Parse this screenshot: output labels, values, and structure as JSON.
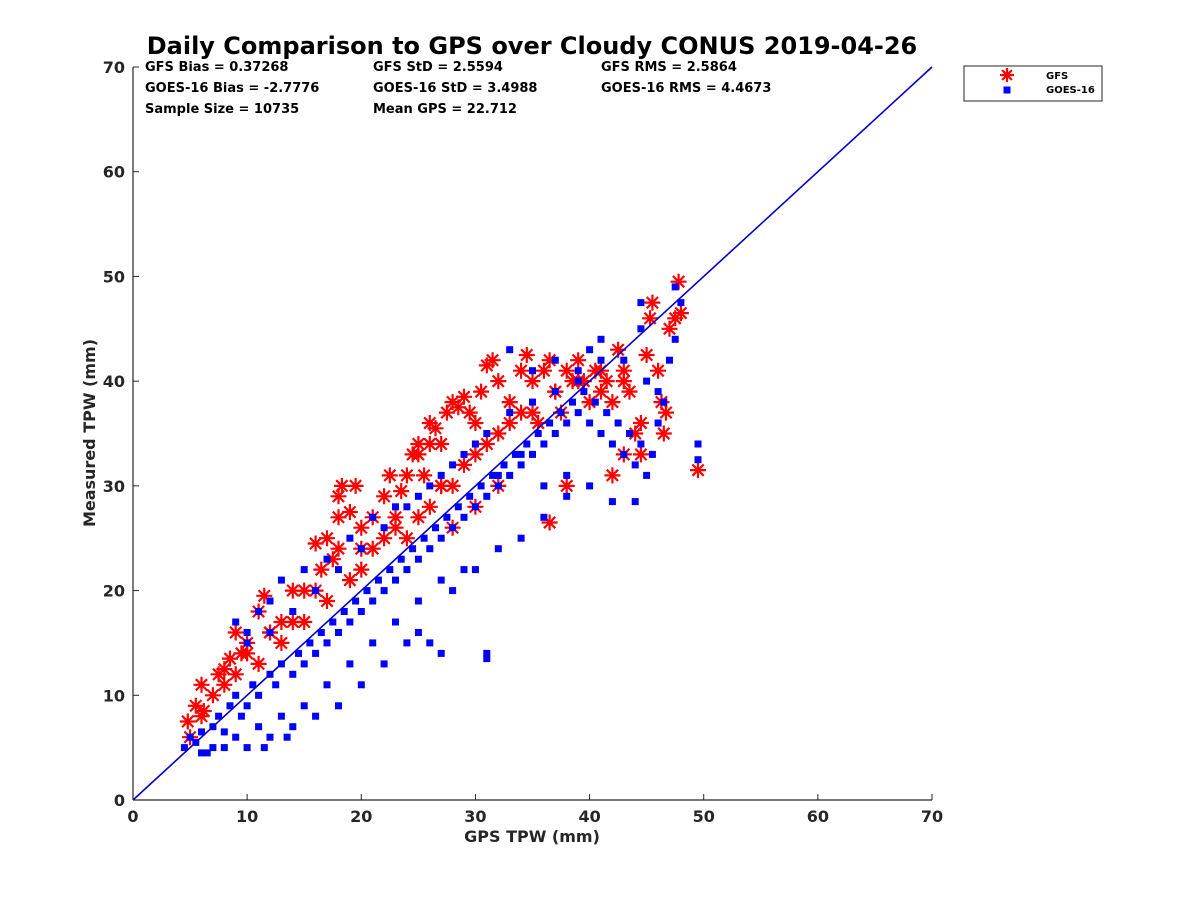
{
  "chart_data": {
    "type": "scatter",
    "title": "Daily Comparison to GPS over Cloudy CONUS 2019-04-26",
    "xlabel": "GPS TPW (mm)",
    "ylabel": "Measured TPW (mm)",
    "xlim": [
      0,
      70
    ],
    "ylim": [
      0,
      70
    ],
    "xticks": [
      "0",
      "10",
      "20",
      "30",
      "40",
      "50",
      "60",
      "70"
    ],
    "yticks": [
      "0",
      "10",
      "20",
      "30",
      "40",
      "50",
      "60",
      "70"
    ],
    "grid": false,
    "legend_position": "top-right outside",
    "stats": [
      [
        "GFS Bias = 0.37268",
        "GFS StD = 2.5594",
        "GFS RMS = 2.5864"
      ],
      [
        "GOES-16 Bias = -2.7776",
        "GOES-16 StD = 3.4988",
        "GOES-16 RMS = 4.4673"
      ],
      [
        "Sample Size = 10735",
        "Mean GPS = 22.712"
      ]
    ],
    "reference_line": {
      "name": "1:1 line",
      "x": [
        0,
        70
      ],
      "y": [
        0,
        70
      ],
      "color": "#0000cc"
    },
    "series": [
      {
        "name": "GFS",
        "marker": "asterisk",
        "color": "#ff0000",
        "bias": 0.37268,
        "std": 2.5594,
        "rms": 2.5864,
        "points": [
          [
            4.8,
            7.5
          ],
          [
            5.5,
            9
          ],
          [
            6,
            11
          ],
          [
            6.2,
            8.5
          ],
          [
            7,
            10
          ],
          [
            7.5,
            12
          ],
          [
            8,
            12.5
          ],
          [
            8.5,
            13.5
          ],
          [
            9,
            16
          ],
          [
            9.5,
            14
          ],
          [
            10,
            15
          ],
          [
            11,
            18
          ],
          [
            11.5,
            19.5
          ],
          [
            12,
            16
          ],
          [
            13,
            17
          ],
          [
            14,
            17
          ],
          [
            15,
            20
          ],
          [
            16,
            24.5
          ],
          [
            16.5,
            22
          ],
          [
            17,
            25
          ],
          [
            17.5,
            23
          ],
          [
            18,
            27
          ],
          [
            18,
            29
          ],
          [
            18.3,
            30
          ],
          [
            19,
            27.5
          ],
          [
            19.5,
            30
          ],
          [
            20,
            26
          ],
          [
            21,
            27
          ],
          [
            22,
            29
          ],
          [
            22.5,
            31
          ],
          [
            23,
            27
          ],
          [
            23.5,
            29.5
          ],
          [
            24,
            31
          ],
          [
            24.5,
            33
          ],
          [
            25,
            34
          ],
          [
            25.5,
            31
          ],
          [
            26,
            36
          ],
          [
            26.5,
            35.5
          ],
          [
            27,
            34
          ],
          [
            27.5,
            37
          ],
          [
            28,
            38
          ],
          [
            28.5,
            37.5
          ],
          [
            29,
            38.5
          ],
          [
            29.5,
            37
          ],
          [
            30,
            36
          ],
          [
            30.5,
            39
          ],
          [
            31,
            41.5
          ],
          [
            31.5,
            42
          ],
          [
            32,
            40
          ],
          [
            33,
            38
          ],
          [
            34,
            41
          ],
          [
            34.5,
            42.5
          ],
          [
            35,
            40
          ],
          [
            35.5,
            36
          ],
          [
            36,
            41
          ],
          [
            36.5,
            42
          ],
          [
            37,
            39
          ],
          [
            37.5,
            37
          ],
          [
            38,
            41
          ],
          [
            38.5,
            40
          ],
          [
            39,
            42
          ],
          [
            39.5,
            40
          ],
          [
            40,
            38
          ],
          [
            40.5,
            41
          ],
          [
            41,
            39
          ],
          [
            41.5,
            40
          ],
          [
            42,
            38
          ],
          [
            42.5,
            43
          ],
          [
            43,
            41
          ],
          [
            43.5,
            39
          ],
          [
            44,
            35
          ],
          [
            44.5,
            36
          ],
          [
            45,
            42.5
          ],
          [
            45.3,
            46
          ],
          [
            45.5,
            47.5
          ],
          [
            46,
            41
          ],
          [
            46.3,
            38
          ],
          [
            46.5,
            35
          ],
          [
            46.7,
            37
          ],
          [
            47,
            45
          ],
          [
            47.5,
            46
          ],
          [
            47.8,
            49.5
          ],
          [
            48,
            46.5
          ],
          [
            49.5,
            31.5
          ],
          [
            28,
            26
          ],
          [
            30,
            28
          ],
          [
            32,
            30
          ],
          [
            24,
            25
          ],
          [
            26,
            28
          ],
          [
            20,
            22
          ],
          [
            18,
            24
          ],
          [
            14,
            20
          ],
          [
            12,
            16
          ],
          [
            10,
            14
          ],
          [
            8,
            11
          ],
          [
            6,
            8
          ],
          [
            5,
            6
          ],
          [
            9,
            12
          ],
          [
            11,
            13
          ],
          [
            13,
            15
          ],
          [
            15,
            17
          ],
          [
            17,
            19
          ],
          [
            19,
            21
          ],
          [
            21,
            24
          ],
          [
            23,
            26
          ],
          [
            25,
            27
          ],
          [
            27,
            30
          ],
          [
            29,
            32
          ],
          [
            31,
            34
          ],
          [
            33,
            36
          ],
          [
            35,
            37
          ],
          [
            37,
            39
          ],
          [
            39,
            40
          ],
          [
            41,
            41
          ],
          [
            43,
            40
          ],
          [
            36.5,
            26.5
          ],
          [
            38,
            30
          ],
          [
            42,
            31
          ],
          [
            43,
            33
          ],
          [
            44.5,
            33
          ],
          [
            25,
            33
          ],
          [
            26,
            34
          ],
          [
            27,
            30
          ],
          [
            22,
            25
          ],
          [
            30,
            33
          ],
          [
            32,
            35
          ],
          [
            34,
            37
          ],
          [
            28,
            30
          ],
          [
            20,
            24
          ],
          [
            16,
            20
          ]
        ]
      },
      {
        "name": "GOES-16",
        "marker": "square",
        "color": "#0000ff",
        "bias": -2.7776,
        "std": 3.4988,
        "rms": 4.4673,
        "points": [
          [
            4.5,
            5
          ],
          [
            5,
            6
          ],
          [
            5.5,
            5.5
          ],
          [
            6,
            6.5
          ],
          [
            6.5,
            4.5
          ],
          [
            7,
            7
          ],
          [
            7.5,
            8
          ],
          [
            8,
            6.5
          ],
          [
            8.5,
            9
          ],
          [
            9,
            10
          ],
          [
            9.5,
            8
          ],
          [
            10,
            9
          ],
          [
            10.5,
            11
          ],
          [
            11,
            10
          ],
          [
            11.5,
            5
          ],
          [
            12,
            12
          ],
          [
            12.5,
            11
          ],
          [
            13,
            13
          ],
          [
            13.5,
            6
          ],
          [
            14,
            12
          ],
          [
            14.5,
            14
          ],
          [
            15,
            13
          ],
          [
            15.5,
            15
          ],
          [
            16,
            14
          ],
          [
            16.5,
            16
          ],
          [
            17,
            15
          ],
          [
            17.5,
            17
          ],
          [
            18,
            16
          ],
          [
            18.5,
            18
          ],
          [
            19,
            17
          ],
          [
            19.5,
            19
          ],
          [
            20,
            18
          ],
          [
            20.5,
            20
          ],
          [
            21,
            19
          ],
          [
            21.5,
            21
          ],
          [
            22,
            20
          ],
          [
            22.5,
            22
          ],
          [
            23,
            21
          ],
          [
            23.5,
            23
          ],
          [
            24,
            22
          ],
          [
            24.5,
            24
          ],
          [
            25,
            23
          ],
          [
            25.5,
            25
          ],
          [
            26,
            24
          ],
          [
            26.5,
            26
          ],
          [
            27,
            25
          ],
          [
            27.5,
            27
          ],
          [
            28,
            26
          ],
          [
            28.5,
            28
          ],
          [
            29,
            27
          ],
          [
            29.5,
            29
          ],
          [
            30,
            28
          ],
          [
            30.5,
            30
          ],
          [
            31,
            29
          ],
          [
            31.5,
            31
          ],
          [
            32,
            30
          ],
          [
            32.5,
            32
          ],
          [
            33,
            31
          ],
          [
            33.5,
            33
          ],
          [
            34,
            32
          ],
          [
            34.5,
            34
          ],
          [
            35,
            33
          ],
          [
            35.5,
            35
          ],
          [
            36,
            34
          ],
          [
            36.5,
            36
          ],
          [
            37,
            35
          ],
          [
            37.5,
            37
          ],
          [
            38,
            36
          ],
          [
            38.5,
            38
          ],
          [
            39,
            37
          ],
          [
            39.5,
            39
          ],
          [
            40,
            36
          ],
          [
            40.5,
            38
          ],
          [
            41,
            35
          ],
          [
            41.5,
            37
          ],
          [
            42,
            34
          ],
          [
            42.5,
            36
          ],
          [
            43,
            33
          ],
          [
            43.5,
            35
          ],
          [
            44,
            32
          ],
          [
            44.5,
            34
          ],
          [
            45,
            31
          ],
          [
            45.5,
            33
          ],
          [
            46,
            36
          ],
          [
            46.5,
            38
          ],
          [
            47,
            42
          ],
          [
            47.5,
            44
          ],
          [
            48,
            47.5
          ],
          [
            47.5,
            49
          ],
          [
            44.5,
            47.5
          ],
          [
            44.5,
            45
          ],
          [
            49.5,
            34
          ],
          [
            49.5,
            32.5
          ],
          [
            31,
            13.5
          ],
          [
            31,
            14
          ],
          [
            26,
            15
          ],
          [
            27,
            14
          ],
          [
            25,
            16
          ],
          [
            20,
            11
          ],
          [
            18,
            9
          ],
          [
            16,
            8
          ],
          [
            14,
            7
          ],
          [
            12,
            6
          ],
          [
            10,
            5
          ],
          [
            8,
            5
          ],
          [
            6,
            4.5
          ],
          [
            22,
            13
          ],
          [
            24,
            15
          ],
          [
            28,
            20
          ],
          [
            30,
            22
          ],
          [
            32,
            24
          ],
          [
            34,
            25
          ],
          [
            36,
            27
          ],
          [
            38,
            29
          ],
          [
            40,
            30
          ],
          [
            29,
            22
          ],
          [
            27,
            21
          ],
          [
            25,
            19
          ],
          [
            23,
            17
          ],
          [
            21,
            15
          ],
          [
            19,
            13
          ],
          [
            17,
            11
          ],
          [
            15,
            9
          ],
          [
            13,
            8
          ],
          [
            11,
            7
          ],
          [
            9,
            6
          ],
          [
            7,
            5
          ],
          [
            33,
            43
          ],
          [
            35,
            41
          ],
          [
            37,
            42
          ],
          [
            39,
            40
          ],
          [
            41,
            44
          ],
          [
            43,
            42
          ],
          [
            45,
            40
          ],
          [
            46,
            39
          ],
          [
            42,
            28.5
          ],
          [
            44,
            28.5
          ],
          [
            32,
            31
          ],
          [
            34,
            33
          ],
          [
            36,
            30
          ],
          [
            38,
            31
          ],
          [
            30,
            34
          ],
          [
            28,
            32
          ],
          [
            26,
            30
          ],
          [
            24,
            28
          ],
          [
            22,
            26
          ],
          [
            20,
            24
          ],
          [
            18,
            22
          ],
          [
            16,
            20
          ],
          [
            14,
            18
          ],
          [
            12,
            16
          ],
          [
            10,
            15
          ],
          [
            9,
            17
          ],
          [
            10,
            16
          ],
          [
            11,
            18
          ],
          [
            12,
            19
          ],
          [
            13,
            21
          ],
          [
            15,
            22
          ],
          [
            17,
            23
          ],
          [
            19,
            25
          ],
          [
            21,
            27
          ],
          [
            23,
            28
          ],
          [
            25,
            29
          ],
          [
            27,
            31
          ],
          [
            29,
            33
          ],
          [
            31,
            35
          ],
          [
            33,
            37
          ],
          [
            35,
            38
          ],
          [
            37,
            39
          ],
          [
            39,
            41
          ],
          [
            40,
            43
          ],
          [
            41,
            42
          ]
        ]
      }
    ]
  }
}
